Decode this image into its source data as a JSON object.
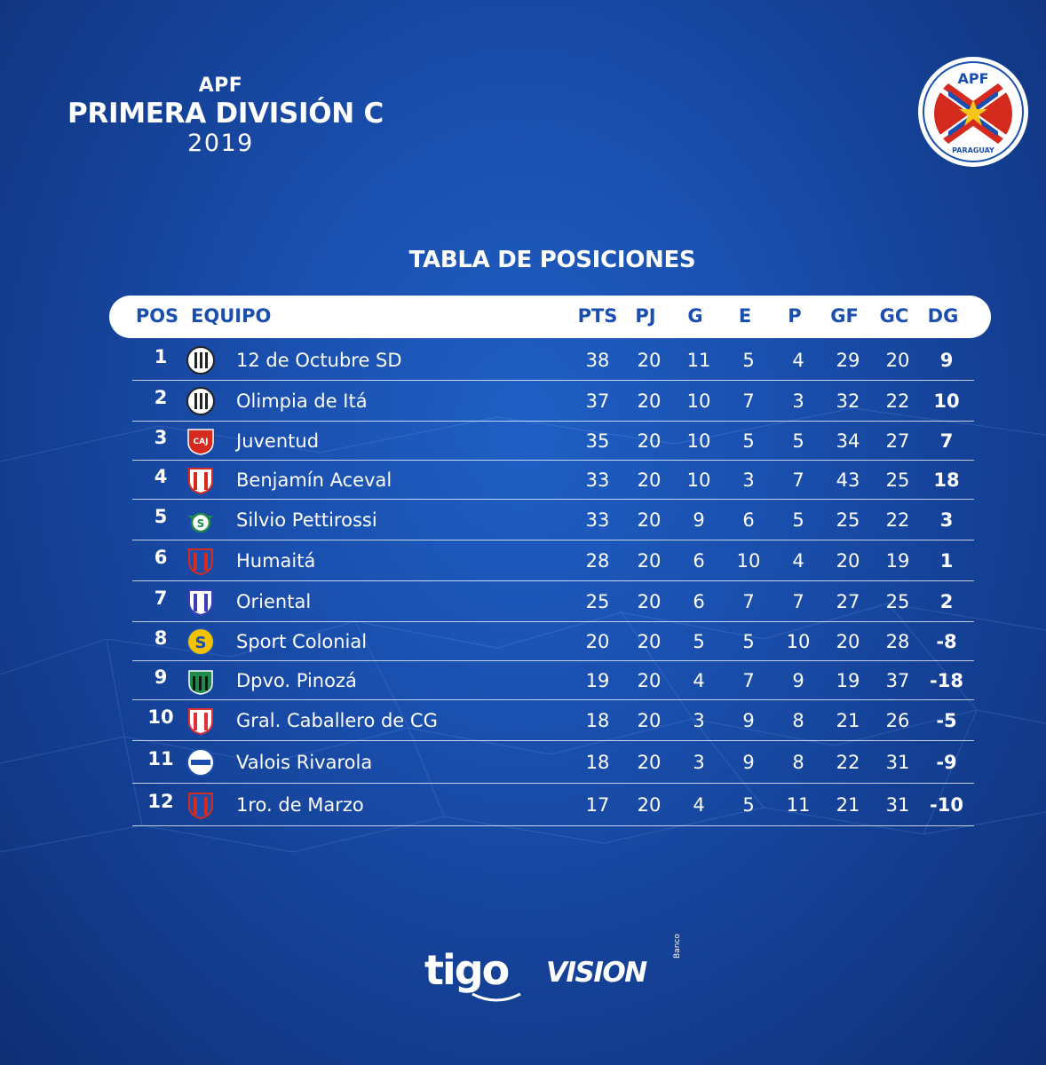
{
  "brand": {
    "apf": "APF",
    "title": "PRIMERA DIVISIÓN C",
    "year": "2019"
  },
  "crest": {
    "top_text": "APF",
    "bottom_text": "PARAGUAY",
    "colors": {
      "red": "#d52b1e",
      "blue": "#1a4fb0",
      "star": "#f5c518"
    }
  },
  "heading": "TABLA DE POSICIONES",
  "columns": {
    "pos": "POS",
    "equipo": "EQUIPO",
    "pts": "PTS",
    "pj": "PJ",
    "g": "G",
    "e": "E",
    "p": "P",
    "gf": "GF",
    "gc": "GC",
    "dg": "DG"
  },
  "rows": [
    {
      "pos": "1",
      "team": "12 de Octubre SD",
      "pts": "38",
      "pj": "20",
      "g": "11",
      "e": "5",
      "p": "4",
      "gf": "29",
      "gc": "20",
      "dg": "9",
      "logo_icon": "12-de-octubre-crest-icon",
      "logo_colors": [
        "#ffffff",
        "#111111"
      ]
    },
    {
      "pos": "2",
      "team": "Olimpia de Itá",
      "pts": "37",
      "pj": "20",
      "g": "10",
      "e": "7",
      "p": "3",
      "gf": "32",
      "gc": "22",
      "dg": "10",
      "logo_icon": "olimpia-de-ita-crest-icon",
      "logo_colors": [
        "#ffffff",
        "#111111"
      ]
    },
    {
      "pos": "3",
      "team": "Juventud",
      "pts": "35",
      "pj": "20",
      "g": "10",
      "e": "5",
      "p": "5",
      "gf": "34",
      "gc": "27",
      "dg": "7",
      "logo_icon": "juventud-crest-icon",
      "logo_colors": [
        "#d52b1e",
        "#1a4fb0"
      ],
      "logo_text": "CAJ"
    },
    {
      "pos": "4",
      "team": "Benjamín Aceval",
      "pts": "33",
      "pj": "20",
      "g": "10",
      "e": "3",
      "p": "7",
      "gf": "43",
      "gc": "25",
      "dg": "18",
      "logo_icon": "benjamin-aceval-crest-icon",
      "logo_colors": [
        "#d52b1e",
        "#ffffff"
      ]
    },
    {
      "pos": "5",
      "team": "Silvio Pettirossi",
      "pts": "33",
      "pj": "20",
      "g": "9",
      "e": "6",
      "p": "5",
      "gf": "25",
      "gc": "22",
      "dg": "3",
      "logo_icon": "silvio-pettirossi-crest-icon",
      "logo_colors": [
        "#1f8a4c",
        "#ffffff"
      ]
    },
    {
      "pos": "6",
      "team": "Humaitá",
      "pts": "28",
      "pj": "20",
      "g": "6",
      "e": "10",
      "p": "4",
      "gf": "20",
      "gc": "19",
      "dg": "1",
      "logo_icon": "humaita-crest-icon",
      "logo_colors": [
        "#d52b1e",
        "#1a4fb0"
      ]
    },
    {
      "pos": "7",
      "team": "Oriental",
      "pts": "25",
      "pj": "20",
      "g": "6",
      "e": "7",
      "p": "7",
      "gf": "27",
      "gc": "25",
      "dg": "2",
      "logo_icon": "oriental-crest-icon",
      "logo_colors": [
        "#3a3fb5",
        "#ffffff"
      ]
    },
    {
      "pos": "8",
      "team": "Sport Colonial",
      "pts": "20",
      "pj": "20",
      "g": "5",
      "e": "5",
      "p": "10",
      "gf": "20",
      "gc": "28",
      "dg": "-8",
      "logo_icon": "sport-colonial-crest-icon",
      "logo_colors": [
        "#f2c200",
        "#1a4fb0"
      ],
      "logo_text": "S"
    },
    {
      "pos": "9",
      "team": "Dpvo. Pinozá",
      "pts": "19",
      "pj": "20",
      "g": "4",
      "e": "7",
      "p": "9",
      "gf": "19",
      "gc": "37",
      "dg": "-18",
      "logo_icon": "pinoza-crest-icon",
      "logo_colors": [
        "#1f8a4c",
        "#111111"
      ]
    },
    {
      "pos": "10",
      "team": "Gral. Caballero de CG",
      "pts": "18",
      "pj": "20",
      "g": "3",
      "e": "9",
      "p": "8",
      "gf": "21",
      "gc": "26",
      "dg": "-5",
      "logo_icon": "gral-caballero-crest-icon",
      "logo_colors": [
        "#e0303a",
        "#ffffff"
      ]
    },
    {
      "pos": "11",
      "team": "Valois Rivarola",
      "pts": "18",
      "pj": "20",
      "g": "3",
      "e": "9",
      "p": "8",
      "gf": "22",
      "gc": "31",
      "dg": "-9",
      "logo_icon": "valois-rivarola-crest-icon",
      "logo_colors": [
        "#ffffff",
        "#1a4fb0"
      ]
    },
    {
      "pos": "12",
      "team": "1ro. de Marzo",
      "pts": "17",
      "pj": "20",
      "g": "4",
      "e": "5",
      "p": "11",
      "gf": "21",
      "gc": "31",
      "dg": "-10",
      "logo_icon": "1ro-de-marzo-crest-icon",
      "logo_colors": [
        "#d52b1e",
        "#1a4fb0"
      ]
    }
  ],
  "sponsors": {
    "tigo": "tigo",
    "vision": "VISION",
    "banco": "Banco"
  }
}
